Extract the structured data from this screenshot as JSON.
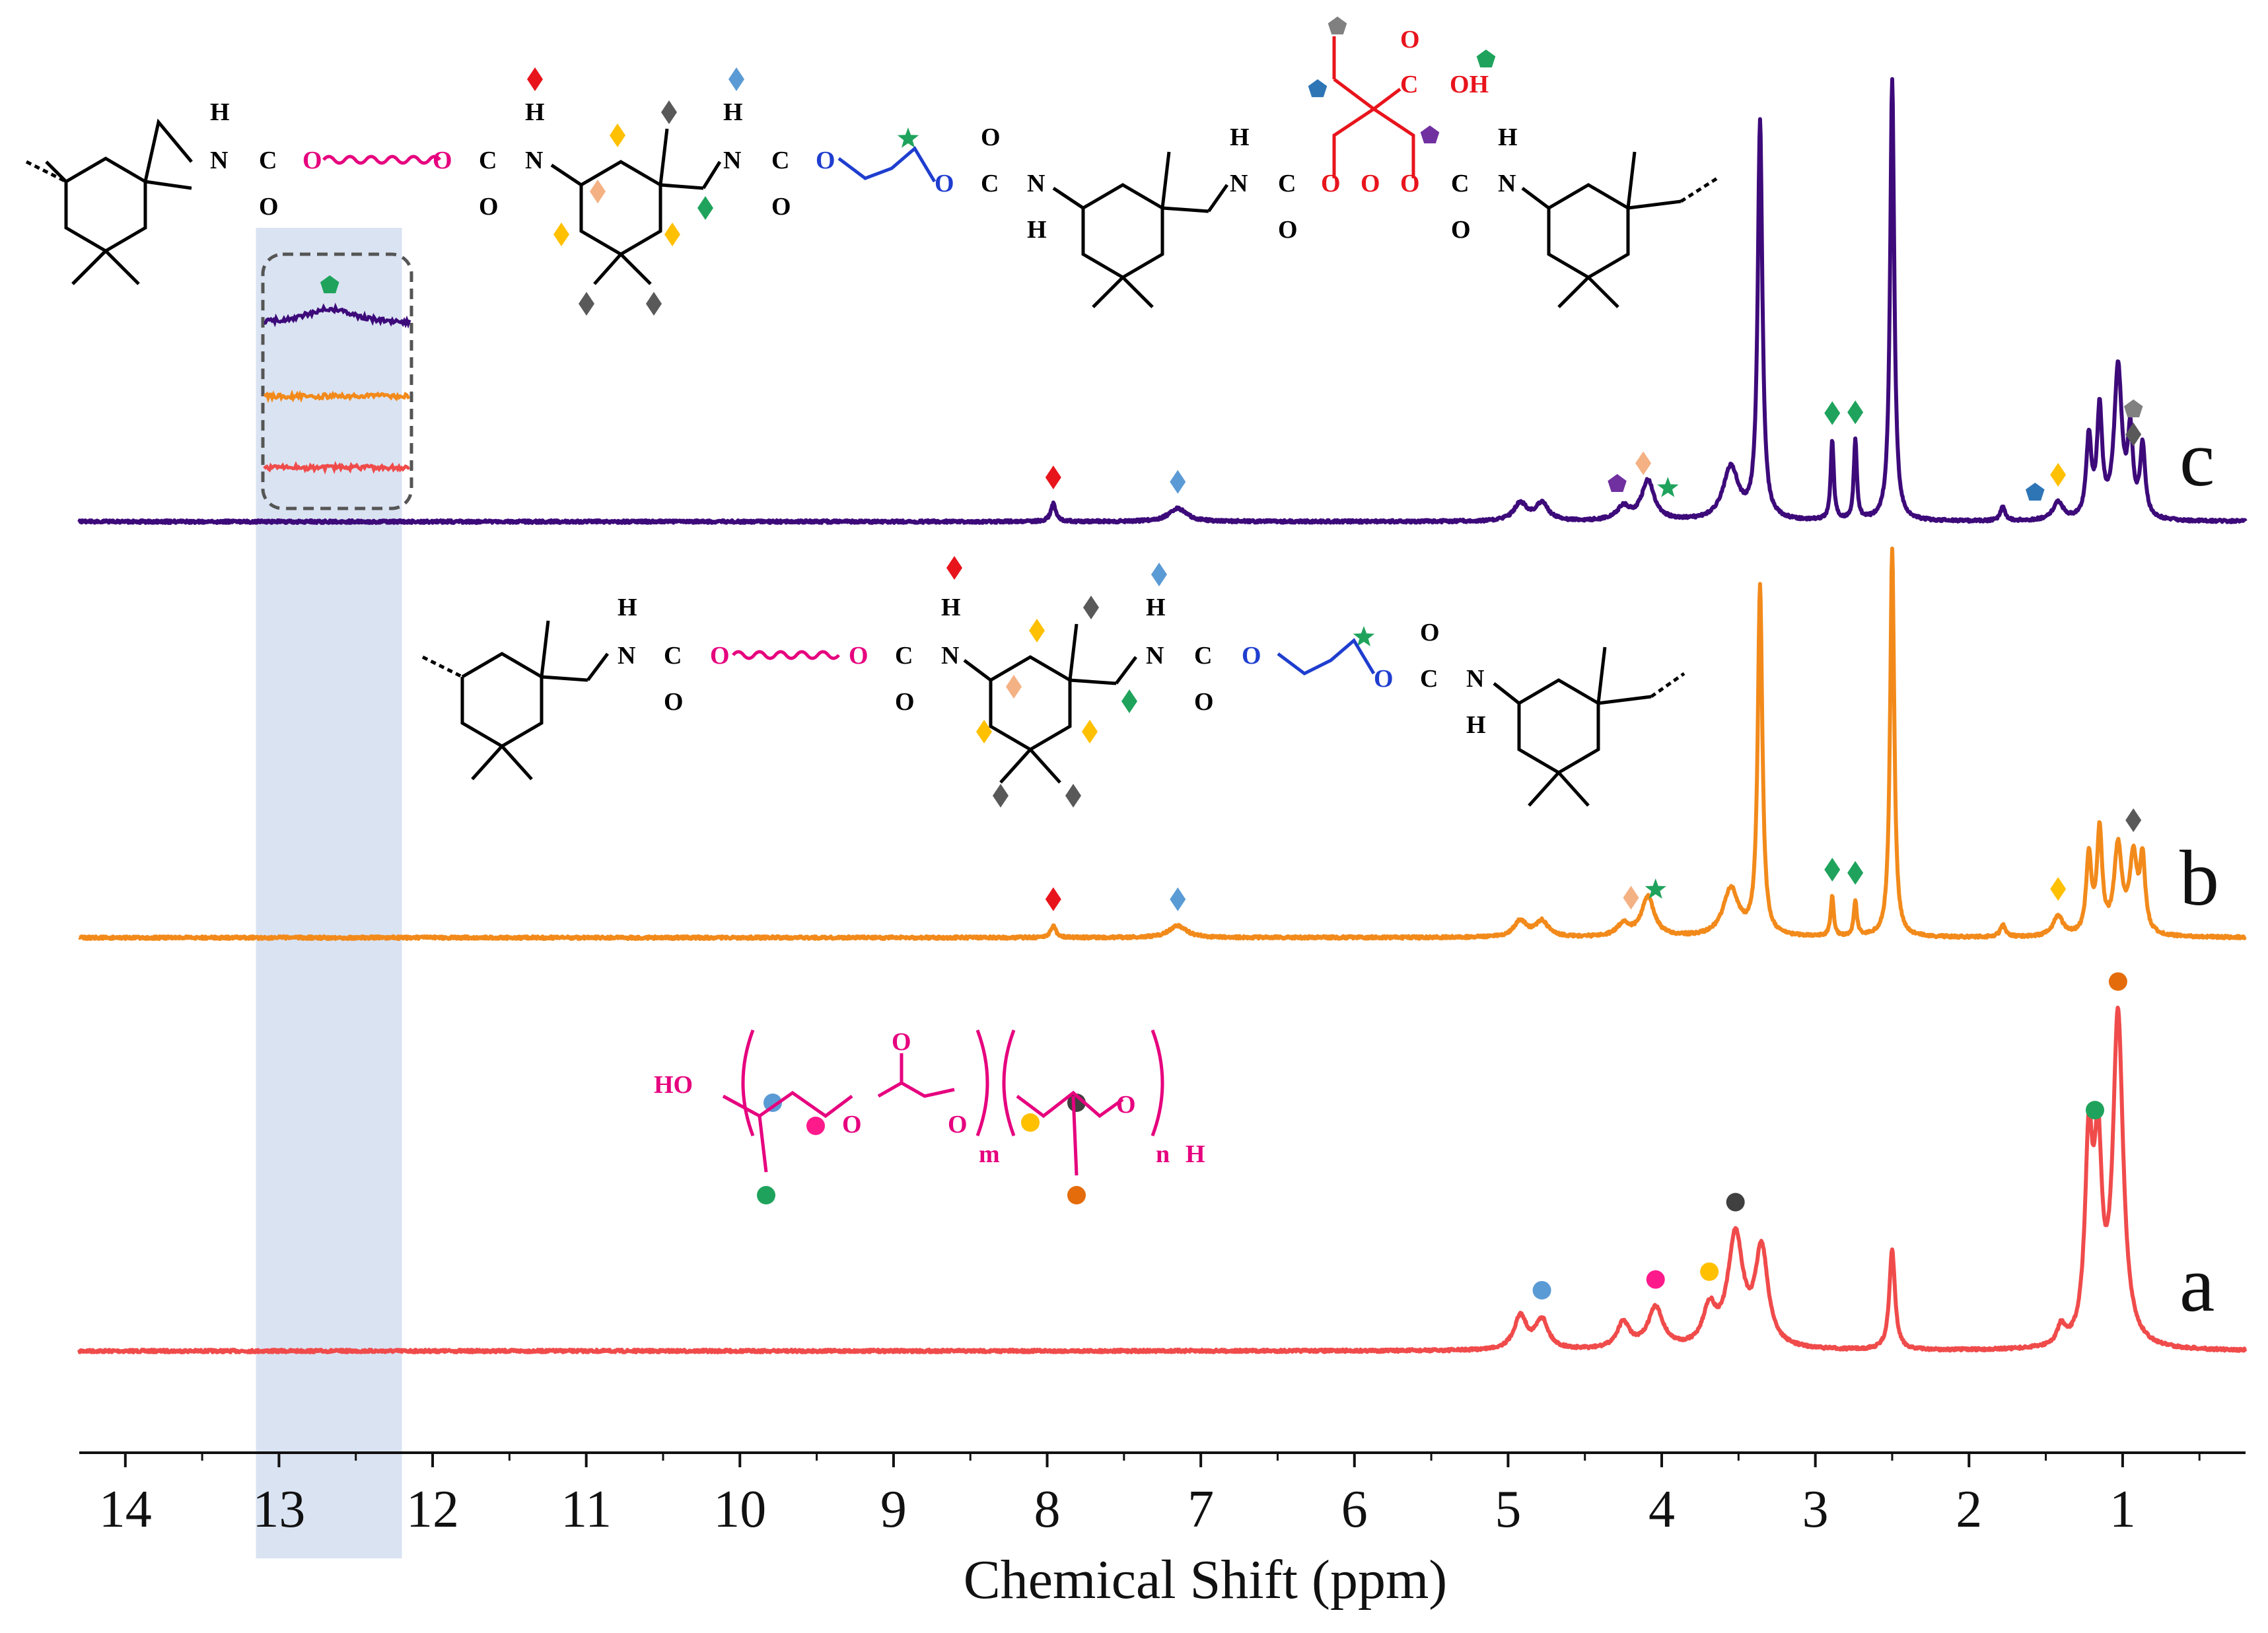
{
  "chart_data": {
    "type": "line",
    "title": "",
    "xlabel": "Chemical Shift (ppm)",
    "ylabel": "",
    "xlim": [
      14.3,
      0.2
    ],
    "x_reversed": true,
    "x_ticks": [
      "14",
      "13",
      "12",
      "11",
      "10",
      "9",
      "8",
      "7",
      "6",
      "5",
      "4",
      "3",
      "2",
      "1"
    ],
    "highlight_region_ppm": [
      13.15,
      12.2
    ],
    "colors": {
      "a": "#f04b4b",
      "b": "#f28a1b",
      "c": "#3d0a7a",
      "highlight": "#dae3f2"
    },
    "series": [
      {
        "name": "a",
        "label": "a",
        "color": "#f04b4b",
        "peaks": [
          {
            "ppm": 4.92,
            "height": 0.09,
            "width": 0.05
          },
          {
            "ppm": 4.78,
            "height": 0.08,
            "width": 0.05
          },
          {
            "ppm": 4.25,
            "height": 0.07,
            "width": 0.05
          },
          {
            "ppm": 4.04,
            "height": 0.11,
            "width": 0.06
          },
          {
            "ppm": 3.69,
            "height": 0.1,
            "width": 0.05
          },
          {
            "ppm": 3.52,
            "height": 0.3,
            "width": 0.06
          },
          {
            "ppm": 3.35,
            "height": 0.26,
            "width": 0.05
          },
          {
            "ppm": 2.5,
            "height": 0.27,
            "width": 0.022
          },
          {
            "ppm": 1.4,
            "height": 0.05,
            "width": 0.03
          },
          {
            "ppm": 1.22,
            "height": 0.52,
            "width": 0.03
          },
          {
            "ppm": 1.16,
            "height": 0.48,
            "width": 0.03
          },
          {
            "ppm": 1.03,
            "height": 0.89,
            "width": 0.04
          }
        ],
        "markers": [
          {
            "ppm": 4.78,
            "symbol": "circle",
            "color": "#5b9bd5"
          },
          {
            "ppm": 4.04,
            "symbol": "circle",
            "color": "#ff1a8c"
          },
          {
            "ppm": 3.69,
            "symbol": "circle",
            "color": "#ffc000"
          },
          {
            "ppm": 3.52,
            "symbol": "circle",
            "color": "#404040"
          },
          {
            "ppm": 1.18,
            "symbol": "circle",
            "color": "#1fa35c"
          },
          {
            "ppm": 1.03,
            "symbol": "circle",
            "color": "#e46c0a"
          }
        ],
        "inset_note": "flat (no peak at ~12.7 ppm)"
      },
      {
        "name": "b",
        "label": "b",
        "color": "#f28a1b",
        "peaks": [
          {
            "ppm": 7.96,
            "height": 0.03,
            "width": 0.02
          },
          {
            "ppm": 7.15,
            "height": 0.03,
            "width": 0.07
          },
          {
            "ppm": 4.92,
            "height": 0.04,
            "width": 0.05
          },
          {
            "ppm": 4.78,
            "height": 0.04,
            "width": 0.05
          },
          {
            "ppm": 4.25,
            "height": 0.03,
            "width": 0.05
          },
          {
            "ppm": 4.09,
            "height": 0.1,
            "width": 0.05
          },
          {
            "ppm": 3.55,
            "height": 0.12,
            "width": 0.06
          },
          {
            "ppm": 3.36,
            "height": 0.88,
            "width": 0.018
          },
          {
            "ppm": 2.89,
            "height": 0.1,
            "width": 0.012
          },
          {
            "ppm": 2.74,
            "height": 0.09,
            "width": 0.012
          },
          {
            "ppm": 2.5,
            "height": 0.98,
            "width": 0.016
          },
          {
            "ppm": 1.78,
            "height": 0.03,
            "width": 0.02
          },
          {
            "ppm": 1.42,
            "height": 0.05,
            "width": 0.04
          },
          {
            "ppm": 1.22,
            "height": 0.2,
            "width": 0.02
          },
          {
            "ppm": 1.15,
            "height": 0.26,
            "width": 0.02
          },
          {
            "ppm": 1.03,
            "height": 0.22,
            "width": 0.03
          },
          {
            "ppm": 0.93,
            "height": 0.19,
            "width": 0.03
          },
          {
            "ppm": 0.87,
            "height": 0.18,
            "width": 0.02
          }
        ],
        "markers": [
          {
            "ppm": 7.96,
            "symbol": "diamond",
            "color": "#e8141c"
          },
          {
            "ppm": 7.15,
            "symbol": "diamond",
            "color": "#5b9bd5"
          },
          {
            "ppm": 4.2,
            "symbol": "diamond",
            "color": "#f4b183"
          },
          {
            "ppm": 4.04,
            "symbol": "star",
            "color": "#1fa35c"
          },
          {
            "ppm": 2.89,
            "symbol": "diamond",
            "color": "#1fa35c"
          },
          {
            "ppm": 2.74,
            "symbol": "diamond",
            "color": "#1fa35c"
          },
          {
            "ppm": 1.42,
            "symbol": "diamond",
            "color": "#ffc000"
          },
          {
            "ppm": 0.93,
            "symbol": "diamond",
            "color": "#595959"
          }
        ],
        "inset_note": "flat (no peak at ~12.7 ppm)"
      },
      {
        "name": "c",
        "label": "c",
        "color": "#3d0a7a",
        "peaks": [
          {
            "ppm": 7.96,
            "height": 0.04,
            "width": 0.02
          },
          {
            "ppm": 7.15,
            "height": 0.03,
            "width": 0.07
          },
          {
            "ppm": 4.92,
            "height": 0.04,
            "width": 0.05
          },
          {
            "ppm": 4.78,
            "height": 0.04,
            "width": 0.05
          },
          {
            "ppm": 4.25,
            "height": 0.03,
            "width": 0.05
          },
          {
            "ppm": 4.09,
            "height": 0.09,
            "width": 0.05
          },
          {
            "ppm": 3.55,
            "height": 0.12,
            "width": 0.06
          },
          {
            "ppm": 3.36,
            "height": 0.9,
            "width": 0.018
          },
          {
            "ppm": 2.89,
            "height": 0.18,
            "width": 0.012
          },
          {
            "ppm": 2.74,
            "height": 0.18,
            "width": 0.012
          },
          {
            "ppm": 2.5,
            "height": 1.0,
            "width": 0.016
          },
          {
            "ppm": 1.78,
            "height": 0.03,
            "width": 0.02
          },
          {
            "ppm": 1.42,
            "height": 0.04,
            "width": 0.04
          },
          {
            "ppm": 1.22,
            "height": 0.18,
            "width": 0.02
          },
          {
            "ppm": 1.15,
            "height": 0.24,
            "width": 0.02
          },
          {
            "ppm": 1.03,
            "height": 0.34,
            "width": 0.03
          },
          {
            "ppm": 0.95,
            "height": 0.18,
            "width": 0.02
          },
          {
            "ppm": 0.87,
            "height": 0.16,
            "width": 0.02
          }
        ],
        "markers": [
          {
            "ppm": 7.96,
            "symbol": "diamond",
            "color": "#e8141c"
          },
          {
            "ppm": 7.15,
            "symbol": "diamond",
            "color": "#5b9bd5"
          },
          {
            "ppm": 4.29,
            "symbol": "pentagon",
            "color": "#7030a0"
          },
          {
            "ppm": 4.12,
            "symbol": "diamond",
            "color": "#f4b183"
          },
          {
            "ppm": 3.96,
            "symbol": "star",
            "color": "#1fa35c"
          },
          {
            "ppm": 2.89,
            "symbol": "diamond",
            "color": "#1fa35c"
          },
          {
            "ppm": 2.74,
            "symbol": "diamond",
            "color": "#1fa35c"
          },
          {
            "ppm": 1.57,
            "symbol": "pentagon",
            "color": "#2e75b6"
          },
          {
            "ppm": 1.42,
            "symbol": "diamond",
            "color": "#ffc000"
          },
          {
            "ppm": 0.93,
            "symbol": "diamond",
            "color": "#595959"
          },
          {
            "ppm": 0.93,
            "symbol": "pentagon",
            "color": "#808080"
          }
        ],
        "inset_note": "broad COOH peak near 12.7 ppm (green pentagon)"
      }
    ],
    "inset_marker": {
      "symbol": "pentagon",
      "color": "#1fa35c"
    }
  },
  "structures": {
    "c": {
      "atom_labels": [
        "H",
        "N",
        "C",
        "O",
        "O",
        "O",
        "C",
        "O",
        "H",
        "N",
        "H",
        "N",
        "C",
        "O",
        "O",
        "O",
        "C",
        "O",
        "N",
        "H",
        "H",
        "N",
        "C",
        "O",
        "O",
        "O",
        "C",
        "O",
        "C",
        "O",
        "OH",
        "O",
        "C",
        "O",
        "H",
        "N"
      ]
    },
    "b": {
      "atom_labels": [
        "H",
        "N",
        "C",
        "O",
        "O",
        "O",
        "C",
        "O",
        "H",
        "N",
        "H",
        "N",
        "C",
        "O",
        "O",
        "O",
        "C",
        "O",
        "N",
        "H"
      ]
    },
    "a": {
      "groups": [
        "HO",
        "O",
        "O",
        "O",
        "O",
        "m",
        "n",
        "H"
      ]
    }
  }
}
